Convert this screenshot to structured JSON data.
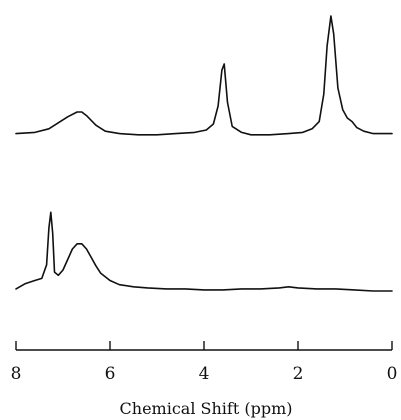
{
  "chart_data": {
    "type": "line",
    "xlabel": "Chemical Shift (ppm)",
    "xlim": [
      8,
      0
    ],
    "xaxis_reversed": true,
    "xticks": [
      8,
      6,
      4,
      2,
      0
    ],
    "tick_labels": [
      "8",
      "6",
      "4",
      "2",
      "0"
    ],
    "grid": false,
    "legend": "none",
    "yaxis_shown": false,
    "series": [
      {
        "position": "top",
        "x": [
          8.0,
          7.6,
          7.3,
          7.1,
          6.9,
          6.7,
          6.6,
          6.5,
          6.3,
          6.1,
          5.8,
          5.4,
          5.0,
          4.6,
          4.2,
          3.95,
          3.8,
          3.7,
          3.62,
          3.57,
          3.5,
          3.4,
          3.2,
          3.0,
          2.6,
          2.2,
          1.9,
          1.7,
          1.55,
          1.45,
          1.38,
          1.3,
          1.24,
          1.15,
          1.05,
          0.95,
          0.85,
          0.75,
          0.6,
          0.4,
          0.2,
          0.0
        ],
        "y": [
          0.02,
          0.03,
          0.06,
          0.11,
          0.16,
          0.2,
          0.2,
          0.17,
          0.09,
          0.04,
          0.02,
          0.01,
          0.01,
          0.02,
          0.03,
          0.05,
          0.1,
          0.25,
          0.55,
          0.6,
          0.28,
          0.08,
          0.03,
          0.01,
          0.01,
          0.02,
          0.03,
          0.06,
          0.12,
          0.35,
          0.75,
          1.0,
          0.85,
          0.4,
          0.22,
          0.15,
          0.12,
          0.07,
          0.04,
          0.02,
          0.02,
          0.02
        ]
      },
      {
        "position": "bottom",
        "x": [
          8.0,
          7.8,
          7.6,
          7.45,
          7.35,
          7.3,
          7.26,
          7.22,
          7.18,
          7.1,
          7.0,
          6.9,
          6.8,
          6.7,
          6.6,
          6.5,
          6.4,
          6.3,
          6.2,
          6.0,
          5.8,
          5.5,
          5.2,
          4.8,
          4.4,
          4.0,
          3.6,
          3.2,
          2.8,
          2.4,
          2.2,
          2.0,
          1.6,
          1.2,
          0.8,
          0.4,
          0.0
        ],
        "y": [
          0.02,
          0.07,
          0.1,
          0.12,
          0.25,
          0.6,
          0.75,
          0.55,
          0.18,
          0.15,
          0.2,
          0.3,
          0.4,
          0.45,
          0.45,
          0.4,
          0.32,
          0.24,
          0.17,
          0.1,
          0.06,
          0.04,
          0.03,
          0.02,
          0.02,
          0.01,
          0.01,
          0.02,
          0.02,
          0.03,
          0.04,
          0.03,
          0.02,
          0.02,
          0.01,
          0.0,
          0.0
        ]
      }
    ]
  }
}
